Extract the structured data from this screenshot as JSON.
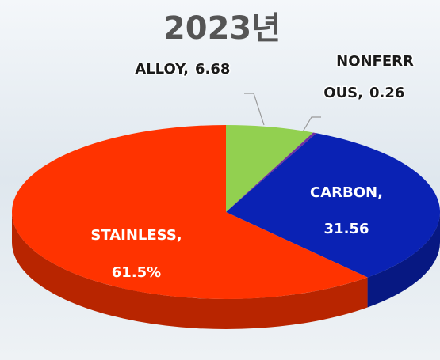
{
  "chart_data": {
    "type": "pie",
    "title": "2023년",
    "categories": [
      "ALLOY,",
      "NONFERROUS,",
      "CARBON,",
      "STAINLESS,"
    ],
    "values": [
      6.68,
      0.26,
      31.56,
      61.5
    ],
    "value_labels": [
      "6.68",
      "0.26",
      "31.56",
      "61.5%"
    ],
    "colors": [
      "#92d050",
      "#7030a0",
      "#0a22b4",
      "#ff3300"
    ]
  }
}
